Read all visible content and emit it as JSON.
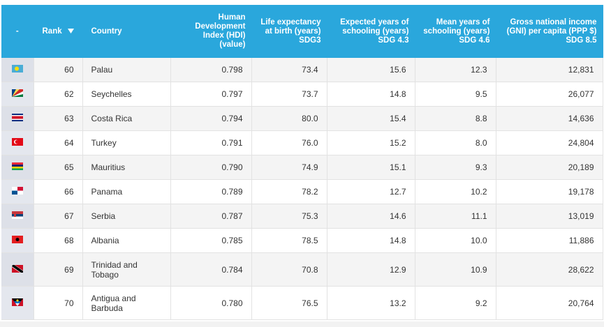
{
  "table": {
    "header": [
      [
        "-"
      ],
      [
        "Rank"
      ],
      [
        "Country"
      ],
      [
        "Human",
        "Development",
        "Index (HDI)",
        "(value)"
      ],
      [
        "Life expectancy",
        "at birth (years)",
        "SDG3"
      ],
      [
        "Expected years of",
        "schooling (years)",
        "SDG 4.3"
      ],
      [
        "Mean years of",
        "schooling (years)",
        "SDG 4.6"
      ],
      [
        "Gross national income",
        "(GNI) per capita (PPP $)",
        "SDG 8.5"
      ]
    ],
    "rows": [
      [
        "60",
        "Palau",
        "0.798",
        "73.4",
        "15.6",
        "12.3",
        "12,831"
      ],
      [
        "62",
        "Seychelles",
        "0.797",
        "73.7",
        "14.8",
        "9.5",
        "26,077"
      ],
      [
        "63",
        "Costa Rica",
        "0.794",
        "80.0",
        "15.4",
        "8.8",
        "14,636"
      ],
      [
        "64",
        "Turkey",
        "0.791",
        "76.0",
        "15.2",
        "8.0",
        "24,804"
      ],
      [
        "65",
        "Mauritius",
        "0.790",
        "74.9",
        "15.1",
        "9.3",
        "20,189"
      ],
      [
        "66",
        "Panama",
        "0.789",
        "78.2",
        "12.7",
        "10.2",
        "19,178"
      ],
      [
        "67",
        "Serbia",
        "0.787",
        "75.3",
        "14.6",
        "11.1",
        "13,019"
      ],
      [
        "68",
        "Albania",
        "0.785",
        "78.5",
        "14.8",
        "10.0",
        "11,886"
      ],
      [
        "69",
        "Trinidad and Tobago",
        "0.784",
        "70.8",
        "12.9",
        "10.9",
        "28,622"
      ],
      [
        "70",
        "Antigua and Barbuda",
        "0.780",
        "76.5",
        "13.2",
        "9.2",
        "20,764"
      ]
    ]
  }
}
